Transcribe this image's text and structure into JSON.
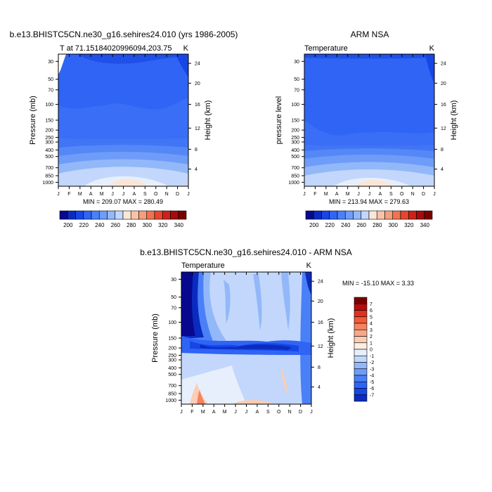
{
  "chart_data": [
    {
      "type": "heatmap",
      "title": "b.e13.BHISTC5CN.ne30_g16.sehires24.010 (yrs 1986-2005)",
      "subtitle": "T at 71.15184020996094,203.75",
      "units": "K",
      "ylabel": "Pressure (mb)",
      "ylabel_right": "Height (km)",
      "months": [
        "J",
        "F",
        "M",
        "A",
        "M",
        "J",
        "J",
        "A",
        "S",
        "O",
        "N",
        "D",
        "J"
      ],
      "pressure_ticks": [
        "30",
        "50",
        "70",
        "100",
        "150",
        "200",
        "250",
        "300",
        "400",
        "500",
        "700",
        "850",
        "1000"
      ],
      "height_ticks": [
        "24",
        "20",
        "16",
        "12",
        "8",
        "4"
      ],
      "minmax": "MIN = 209.07  MAX = 280.49"
    },
    {
      "type": "heatmap",
      "title": "ARM NSA",
      "subtitle": "Temperature",
      "units": "K",
      "ylabel": "pressure level",
      "ylabel_right": "Height (km)",
      "months": [
        "J",
        "F",
        "M",
        "A",
        "M",
        "J",
        "J",
        "A",
        "S",
        "O",
        "N",
        "D",
        "J"
      ],
      "pressure_ticks": [
        "30",
        "50",
        "70",
        "100",
        "150",
        "200",
        "250",
        "300",
        "400",
        "500",
        "700",
        "850",
        "1000"
      ],
      "height_ticks": [
        "24",
        "20",
        "16",
        "12",
        "8",
        "4"
      ],
      "minmax": "MIN = 213.94  MAX = 279.63"
    },
    {
      "type": "heatmap",
      "title": "b.e13.BHISTC5CN.ne30_g16.sehires24.010 - ARM NSA",
      "subtitle": "Temperature",
      "units": "K",
      "ylabel": "Pressure (mb)",
      "ylabel_right": "Height (km)",
      "months": [
        "J",
        "F",
        "M",
        "A",
        "M",
        "J",
        "J",
        "A",
        "S",
        "O",
        "N",
        "D",
        "J"
      ],
      "pressure_ticks": [
        "30",
        "50",
        "70",
        "100",
        "150",
        "200",
        "250",
        "300",
        "400",
        "500",
        "700",
        "850",
        "1000"
      ],
      "height_ticks": [
        "24",
        "20",
        "16",
        "12",
        "8",
        "4"
      ],
      "minmax": "MIN = -15.10  MAX =   3.33"
    }
  ],
  "colorbar_abs": {
    "labels": [
      "200",
      "220",
      "240",
      "260",
      "280",
      "300",
      "320",
      "340"
    ],
    "colors": [
      "#08088f",
      "#0b2bc0",
      "#1746e6",
      "#2f64f5",
      "#4a80f7",
      "#6e9cf8",
      "#93b8f9",
      "#c2d7fb",
      "#fbe6d6",
      "#f9c3a8",
      "#f59e7c",
      "#f07250",
      "#e5472f",
      "#cc2218",
      "#a50c0c",
      "#7a0000"
    ]
  },
  "colorbar_diff": {
    "labels": [
      "7",
      "6",
      "5",
      "4",
      "3",
      "2",
      "1",
      "0",
      "-1",
      "-2",
      "-3",
      "-4",
      "-5",
      "-6",
      "-7"
    ],
    "colors": [
      "#7a0000",
      "#b80d0d",
      "#e0301f",
      "#f05a3a",
      "#f5835f",
      "#f8a888",
      "#fbcdb5",
      "#fdeee4",
      "#e7effc",
      "#c2d7fb",
      "#93b8f9",
      "#6e9cf8",
      "#4a80f7",
      "#2f64f5",
      "#1746e6",
      "#0b2bc0"
    ]
  }
}
